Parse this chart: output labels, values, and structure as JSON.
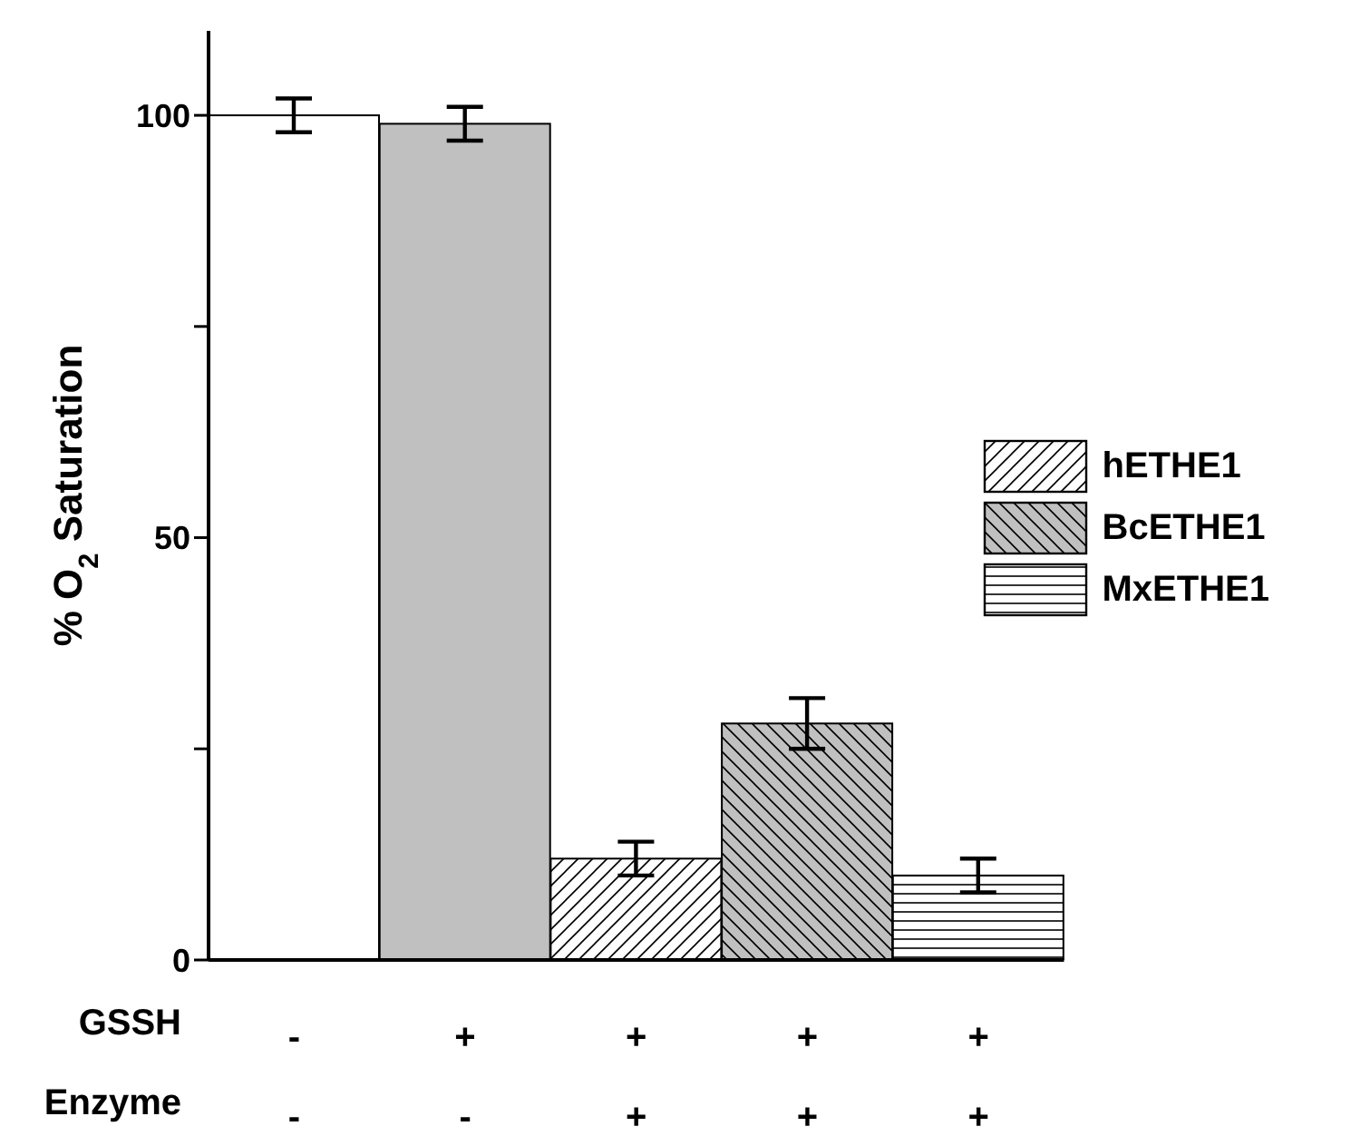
{
  "chart_data": {
    "type": "bar",
    "ylabel": "% O$_{2}$ Saturation",
    "categories": [
      "-\n-",
      "+\n-",
      "+\n+",
      "+\n+",
      "+\n+"
    ],
    "series": [
      {
        "color": "#ffffff",
        "colors": [
          "#ffffff",
          "#c0c0c0",
          null,
          null,
          null
        ],
        "values": [
          100,
          99,
          null,
          null,
          null
        ],
        "errors": [
          2,
          2,
          null,
          null,
          null
        ]
      },
      {
        "name": "hETHE1",
        "color": "#ffffff",
        "values": [
          null,
          null,
          12,
          null,
          null
        ],
        "errors": [
          null,
          null,
          2,
          null,
          null
        ]
      },
      {
        "name": "BcETHE1",
        "color": "#c0c0c0",
        "values": [
          null,
          null,
          null,
          28,
          null
        ],
        "errors": [
          null,
          null,
          null,
          3,
          null
        ]
      },
      {
        "name": "MxETHE1",
        "color": "#ffffff",
        "values": [
          null,
          null,
          null,
          null,
          10
        ],
        "errors": [
          null,
          null,
          null,
          null,
          2
        ]
      }
    ],
    "stacked": true,
    "ylim": [
      0,
      110
    ],
    "yticks": [
      0,
      {
        "value": 25,
        "label": null
      },
      50,
      {
        "value": 75,
        "label": null
      },
      100
    ],
    "grid": false,
    "legend": "right",
    "annotations": [
      "GSSH",
      "Enzyme"
    ]
  }
}
